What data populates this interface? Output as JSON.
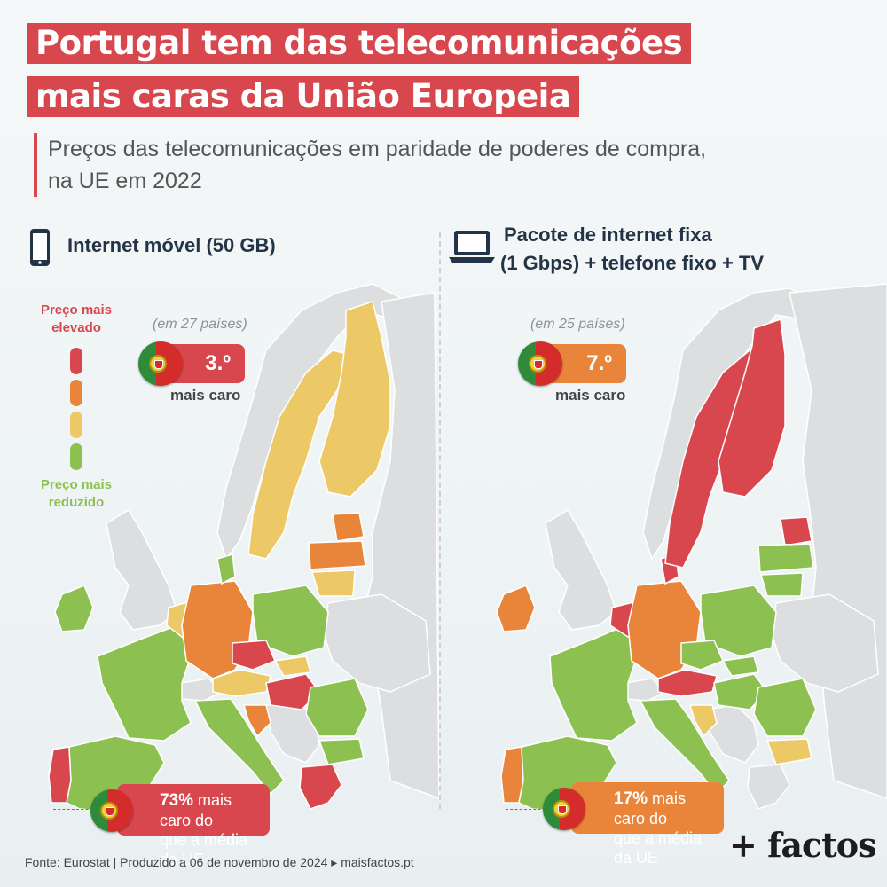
{
  "header": {
    "title_line1": "Portugal tem das telecomunicações",
    "title_line2": "mais caras da União Europeia",
    "subtitle_line1": "Preços das telecomunicações em paridade de poderes de compra,",
    "subtitle_line2": "na UE em 2022"
  },
  "colors": {
    "accent": "#d9474e",
    "highest": "#d9474e",
    "high": "#e8853a",
    "low": "#edc867",
    "lowest": "#8cc152",
    "non_eu": "#dcdee0"
  },
  "legend": {
    "high_label_line1": "Preço mais",
    "high_label_line2": "elevado",
    "low_label_line1": "Preço mais",
    "low_label_line2": "reduzido"
  },
  "panels": [
    {
      "icon": "smartphone-icon",
      "title_line1": "Internet móvel (50 GB)",
      "title_line2": "",
      "note": "(em 27 países)",
      "rank": "3.º",
      "rank_label": "mais caro",
      "pct": "73%",
      "pct_text_line1": "mais caro do",
      "pct_text_line2": "que a média da UE",
      "badge_color": "#d9474e"
    },
    {
      "icon": "laptop-icon",
      "title_line1": "Pacote de internet fixa",
      "title_line2": "(1 Gbps) + telefone fixo + TV",
      "note": "(em 25 países)",
      "rank": "7.º",
      "rank_label": "mais caro",
      "pct": "17%",
      "pct_text_line1": "mais caro do",
      "pct_text_line2": "que a média da UE",
      "badge_color": "#e8853a"
    }
  ],
  "footer": {
    "source": "Fonte: Eurostat | Produzido a 06 de novembro de 2024 ▸ maisfactos.pt",
    "brand": "+ factos"
  }
}
